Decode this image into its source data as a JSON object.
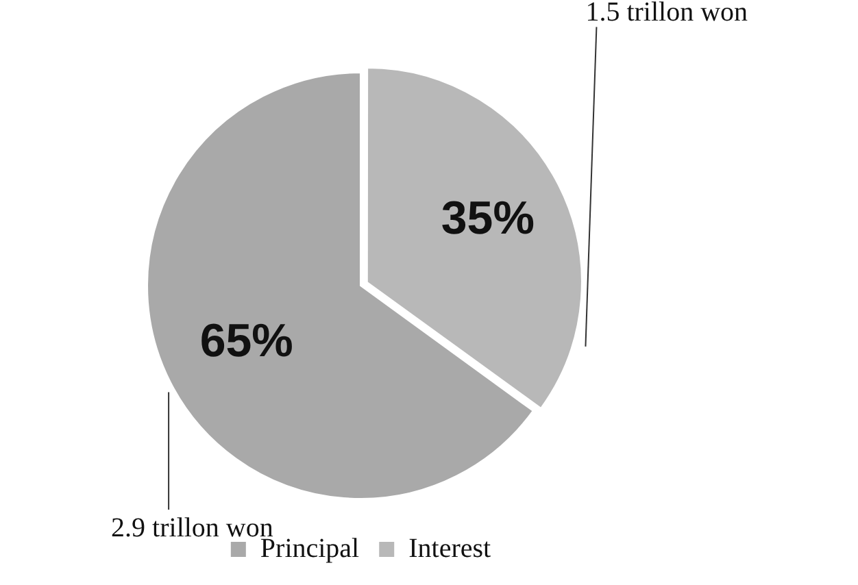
{
  "chart_data": {
    "type": "pie",
    "categories": [
      "Principal",
      "Interest"
    ],
    "values": [
      65,
      35
    ],
    "colors": [
      "#a9a9a9",
      "#b8b8b8"
    ],
    "value_labels": [
      "65%",
      "35%"
    ],
    "legend": "bottom",
    "annotations": [
      "2.9 trillon won",
      "1.5 trillon won"
    ]
  }
}
